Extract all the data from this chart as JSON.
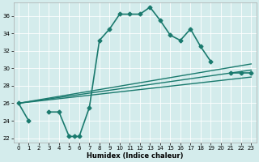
{
  "title": "",
  "xlabel": "Humidex (Indice chaleur)",
  "bg_color": "#d4ecec",
  "line_color": "#1a7a6e",
  "xlim": [
    -0.5,
    23.5
  ],
  "ylim": [
    21.5,
    37.5
  ],
  "yticks": [
    22,
    24,
    26,
    28,
    30,
    32,
    34,
    36
  ],
  "xticks": [
    0,
    1,
    2,
    3,
    4,
    5,
    6,
    7,
    8,
    9,
    10,
    11,
    12,
    13,
    14,
    15,
    16,
    17,
    18,
    19,
    20,
    21,
    22,
    23
  ],
  "main_series": {
    "x": [
      0,
      1,
      3,
      4,
      5,
      5.5,
      6,
      7,
      8,
      9,
      10,
      11,
      12,
      13,
      14,
      15,
      16,
      17,
      18,
      19,
      21,
      22,
      23
    ],
    "y": [
      26,
      24,
      25,
      25,
      22.2,
      22.2,
      22.2,
      25.5,
      33.2,
      34.5,
      36.2,
      36.2,
      36.2,
      37.0,
      35.5,
      33.8,
      33.2,
      34.5,
      32.5,
      30.8,
      29.5,
      29.5,
      29.5
    ],
    "has_marker": true,
    "linewidth": 1.2,
    "markersize": 2.5
  },
  "linear_lines": [
    {
      "x": [
        0,
        23
      ],
      "y": [
        26.0,
        29.0
      ]
    },
    {
      "x": [
        0,
        23
      ],
      "y": [
        26.0,
        29.8
      ]
    },
    {
      "x": [
        0,
        23
      ],
      "y": [
        26.0,
        30.5
      ]
    }
  ]
}
